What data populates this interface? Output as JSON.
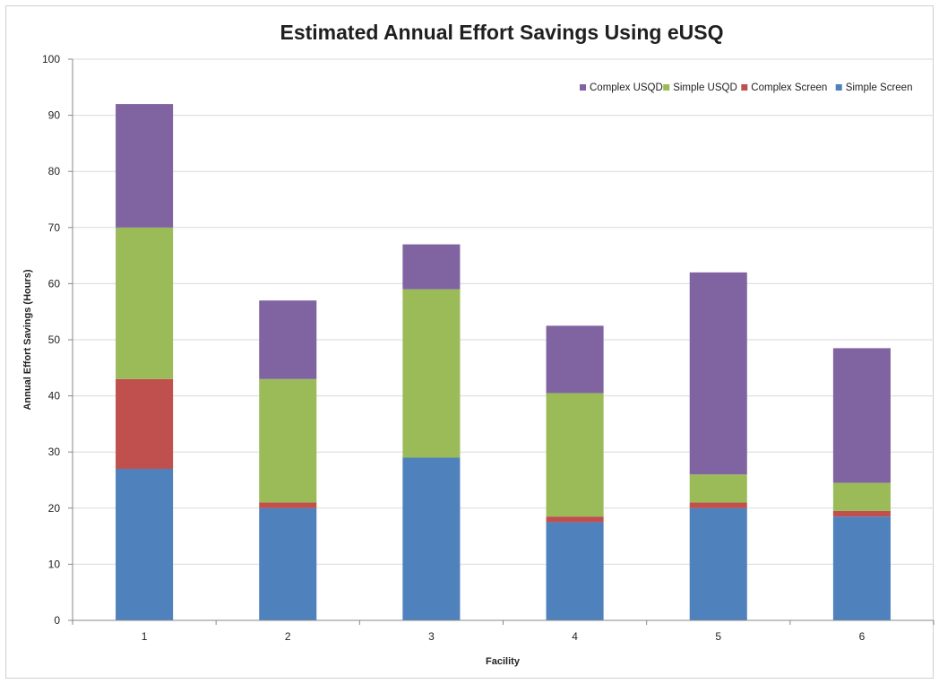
{
  "chart_data": {
    "type": "bar",
    "stacked": true,
    "title": "Estimated Annual Effort Savings Using eUSQ",
    "xlabel": "Facility",
    "ylabel": "Annual Effort Savings (Hours)",
    "categories": [
      "1",
      "2",
      "3",
      "4",
      "5",
      "6"
    ],
    "ylim": [
      0,
      100
    ],
    "yticks": [
      0,
      10,
      20,
      30,
      40,
      50,
      60,
      70,
      80,
      90,
      100
    ],
    "grid": true,
    "legend_position": "top-right",
    "series": [
      {
        "name": "Simple Screen",
        "color": "#4f81bd",
        "values": [
          27,
          20,
          29,
          17.5,
          20,
          18.5
        ]
      },
      {
        "name": "Complex Screen",
        "color": "#c0504d",
        "values": [
          16,
          1,
          0,
          1,
          1,
          1
        ]
      },
      {
        "name": "Simple USQD",
        "color": "#9bbb59",
        "values": [
          27,
          22,
          30,
          22,
          5,
          5
        ]
      },
      {
        "name": "Complex USQD",
        "color": "#8064a2",
        "values": [
          22,
          14,
          8,
          12,
          36,
          24
        ]
      }
    ],
    "legend_order": [
      "Complex USQD",
      "Simple USQD",
      "Complex Screen",
      "Simple Screen"
    ]
  }
}
